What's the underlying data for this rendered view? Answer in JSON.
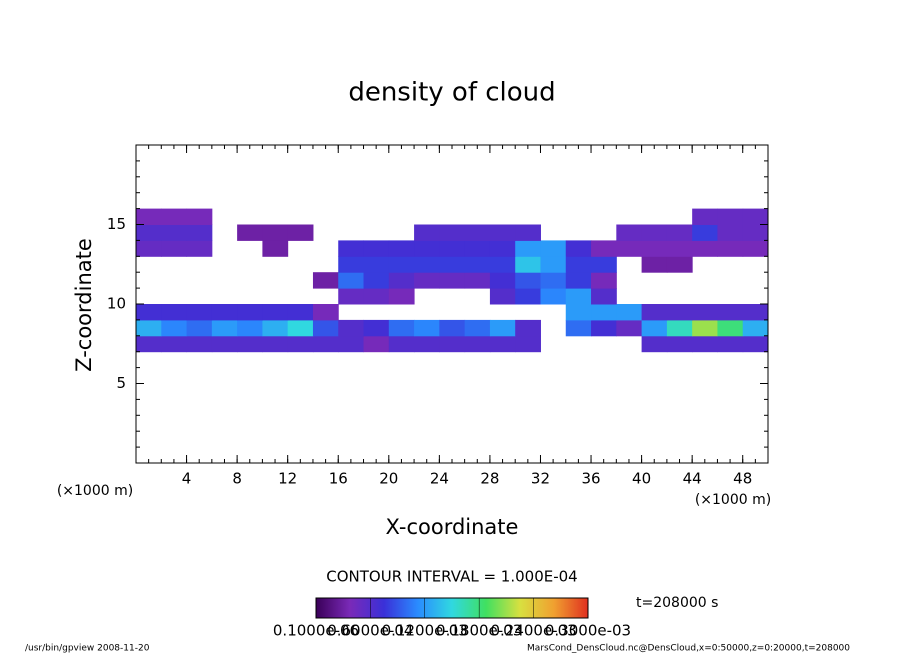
{
  "chart_data": {
    "type": "contour",
    "title": "density of cloud",
    "xlabel": "X-coordinate",
    "ylabel": "Z-coordinate",
    "xunit": "(×1000 m)",
    "yunit": "(×1000 m)",
    "xlim": [
      0,
      50
    ],
    "ylim": [
      0,
      20
    ],
    "xticks": [
      4,
      8,
      12,
      16,
      20,
      24,
      28,
      32,
      36,
      40,
      44,
      48
    ],
    "yticks": [
      5,
      10,
      15
    ],
    "contour_interval": "CONTOUR INTERVAL = 1.000E-04",
    "time": "t=208000 s",
    "footer_left": "/usr/bin/gpview  2008-11-20",
    "footer_right": "MarsCond_DensCloud.nc@DensCloud,x=0:50000,z=0:20000,t=208000",
    "colormap": [
      "#3a0058",
      "#7a2ab8",
      "#3a30d8",
      "#2a8cff",
      "#30d8e0",
      "#40e060",
      "#d8e040",
      "#f0a030",
      "#e03020"
    ],
    "colorbar_ticks": [
      {
        "value": 1e-07,
        "label": "0.1000e-06"
      },
      {
        "value": 6e-05,
        "label": "0.6000e-04"
      },
      {
        "value": 0.00012,
        "label": "0.1200e-03"
      },
      {
        "value": 0.00018,
        "label": "0.1800e-03"
      },
      {
        "value": 0.00024,
        "label": "0.2400e-03"
      },
      {
        "value": 0.0003,
        "label": "0.3000e-03"
      }
    ],
    "field": {
      "x": [
        1,
        3,
        5,
        7,
        9,
        11,
        13,
        15,
        17,
        19,
        21,
        23,
        25,
        27,
        29,
        31,
        33,
        35,
        37,
        39,
        41,
        43,
        45,
        47,
        49
      ],
      "z": [
        7.5,
        8.5,
        9.5,
        10.5,
        11.5,
        12.5,
        13.5,
        14.5,
        15.5
      ],
      "values": [
        [
          6e-05,
          6e-05,
          6e-05,
          6e-05,
          6e-05,
          6e-05,
          6e-05,
          6e-05,
          6e-05,
          4e-05,
          6e-05,
          6e-05,
          6e-05,
          6e-05,
          6e-05,
          6e-05,
          null,
          null,
          null,
          null,
          6e-05,
          6e-05,
          6e-05,
          6e-05,
          6e-05
        ],
        [
          0.00013,
          0.00011,
          0.0001,
          0.00012,
          0.00011,
          0.00013,
          0.00015,
          9e-05,
          6e-05,
          7e-05,
          0.0001,
          0.00011,
          9e-05,
          0.0001,
          0.00012,
          6e-05,
          null,
          0.0001,
          7e-05,
          5e-05,
          0.00012,
          0.00016,
          0.00021,
          0.00018,
          0.00013
        ],
        [
          7e-05,
          7e-05,
          7e-05,
          7e-05,
          7e-05,
          7e-05,
          7e-05,
          4e-05,
          null,
          null,
          null,
          null,
          null,
          null,
          null,
          null,
          null,
          0.00012,
          0.00012,
          0.00012,
          6e-05,
          6e-05,
          6e-05,
          6e-05,
          6e-05
        ],
        [
          null,
          null,
          null,
          null,
          null,
          null,
          null,
          null,
          5e-05,
          5e-05,
          4e-05,
          null,
          null,
          null,
          6e-05,
          8e-05,
          0.00011,
          0.00012,
          6e-05,
          null,
          null,
          null,
          null,
          null,
          null
        ],
        [
          null,
          null,
          null,
          null,
          null,
          null,
          null,
          3e-05,
          0.0001,
          8e-05,
          6e-05,
          5e-05,
          5e-05,
          5e-05,
          7e-05,
          9e-05,
          0.0001,
          8e-05,
          4e-05,
          null,
          null,
          null,
          null,
          null,
          null
        ],
        [
          null,
          null,
          null,
          null,
          null,
          null,
          null,
          null,
          8e-05,
          8e-05,
          8e-05,
          8e-05,
          8e-05,
          8e-05,
          8e-05,
          0.00014,
          0.00012,
          8e-05,
          8e-05,
          null,
          3e-05,
          3e-05,
          null,
          null,
          null
        ],
        [
          5e-05,
          5e-05,
          5e-05,
          null,
          null,
          3e-05,
          null,
          null,
          7e-05,
          7e-05,
          7e-05,
          7e-05,
          7e-05,
          7e-05,
          7e-05,
          0.00012,
          0.00012,
          7e-05,
          4e-05,
          4e-05,
          4e-05,
          4e-05,
          4e-05,
          4e-05,
          4e-05
        ],
        [
          6e-05,
          6e-05,
          6e-05,
          null,
          3e-05,
          3e-05,
          3e-05,
          null,
          null,
          null,
          null,
          6e-05,
          6e-05,
          6e-05,
          6e-05,
          6e-05,
          null,
          null,
          null,
          5e-05,
          5e-05,
          5e-05,
          8e-05,
          5e-05,
          5e-05
        ],
        [
          4e-05,
          4e-05,
          4e-05,
          null,
          null,
          null,
          null,
          null,
          null,
          null,
          null,
          null,
          null,
          null,
          null,
          null,
          null,
          null,
          null,
          null,
          null,
          null,
          5e-05,
          5e-05,
          5e-05
        ]
      ]
    }
  }
}
